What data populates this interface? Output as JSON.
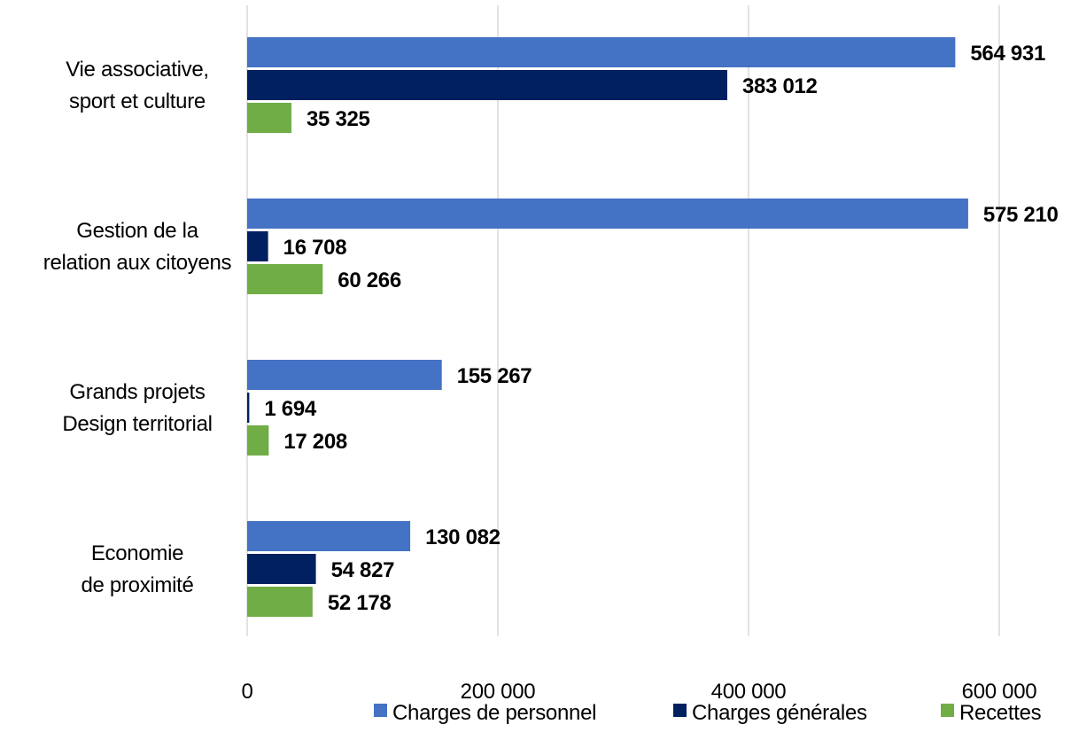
{
  "chart_data": {
    "type": "bar",
    "orientation": "horizontal",
    "title": "",
    "xlabel": "",
    "ylabel": "",
    "categories": [
      [
        "Vie associative,",
        "sport et culture"
      ],
      [
        "Gestion de la",
        "relation aux citoyens"
      ],
      [
        "Grands projets",
        "Design territorial"
      ],
      [
        "Economie",
        "de proximité"
      ]
    ],
    "series": [
      {
        "name": "Charges de personnel",
        "color": "#4472C4",
        "values": [
          564931,
          575210,
          155267,
          130082
        ],
        "labels": [
          "564 931",
          "575 210",
          "155 267",
          "130 082"
        ]
      },
      {
        "name": "Charges générales",
        "color": "#002060",
        "values": [
          383012,
          16708,
          1694,
          54827
        ],
        "labels": [
          "383 012",
          "16 708",
          "1 694",
          "54 827"
        ]
      },
      {
        "name": "Recettes",
        "color": "#70AD47",
        "values": [
          35325,
          60266,
          17208,
          52178
        ],
        "labels": [
          "35 325",
          "60 266",
          "17 208",
          "52 178"
        ]
      }
    ],
    "xlim": [
      0,
      600000
    ],
    "x_ticks": [
      0,
      200000,
      400000,
      600000
    ],
    "x_tick_labels": [
      "0",
      "200 000",
      "400 000",
      "600 000"
    ],
    "grid": "vertical",
    "legend": "bottom"
  }
}
